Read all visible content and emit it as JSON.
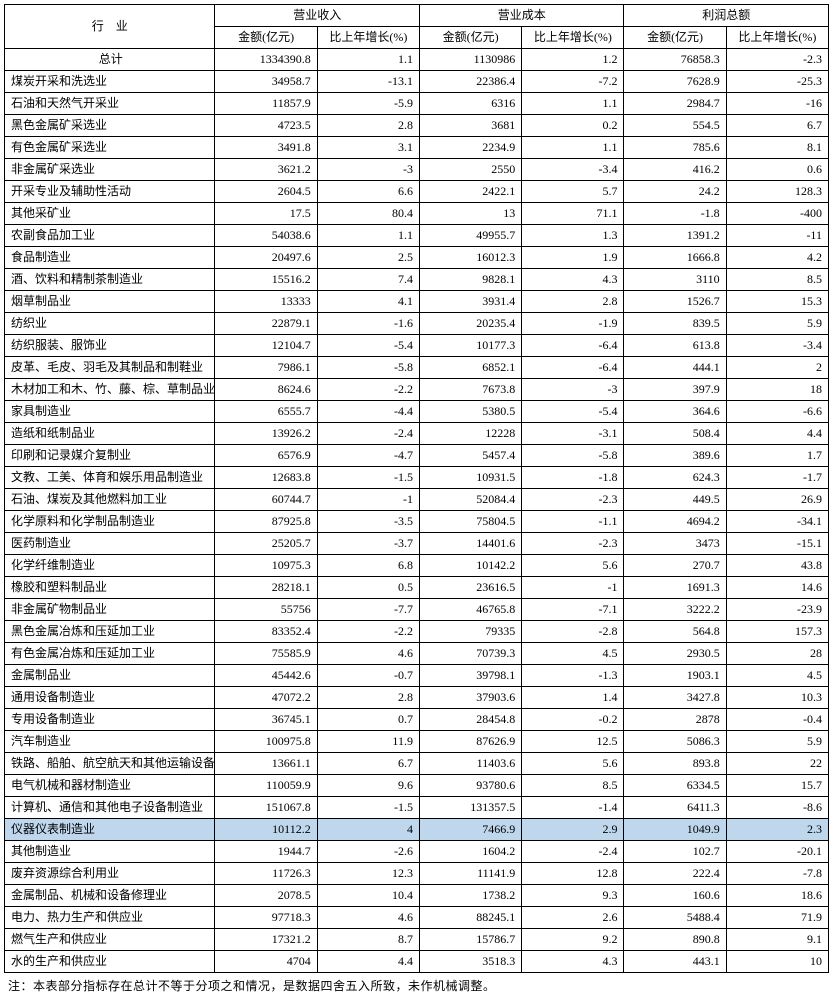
{
  "header": {
    "industry": "行　业",
    "revenue": "营业收入",
    "cost": "营业成本",
    "profit": "利润总额",
    "amount": "金额(亿元)",
    "growth": "比上年增长(%)"
  },
  "highlight_row_index": 35,
  "rows": [
    {
      "name": "总计",
      "rev_amt": "1334390.8",
      "rev_g": "1.1",
      "cost_amt": "1130986",
      "cost_g": "1.2",
      "prof_amt": "76858.3",
      "prof_g": "-2.3",
      "total": true
    },
    {
      "name": "煤炭开采和洗选业",
      "rev_amt": "34958.7",
      "rev_g": "-13.1",
      "cost_amt": "22386.4",
      "cost_g": "-7.2",
      "prof_amt": "7628.9",
      "prof_g": "-25.3"
    },
    {
      "name": "石油和天然气开采业",
      "rev_amt": "11857.9",
      "rev_g": "-5.9",
      "cost_amt": "6316",
      "cost_g": "1.1",
      "prof_amt": "2984.7",
      "prof_g": "-16"
    },
    {
      "name": "黑色金属矿采选业",
      "rev_amt": "4723.5",
      "rev_g": "2.8",
      "cost_amt": "3681",
      "cost_g": "0.2",
      "prof_amt": "554.5",
      "prof_g": "6.7"
    },
    {
      "name": "有色金属矿采选业",
      "rev_amt": "3491.8",
      "rev_g": "3.1",
      "cost_amt": "2234.9",
      "cost_g": "1.1",
      "prof_amt": "785.6",
      "prof_g": "8.1"
    },
    {
      "name": "非金属矿采选业",
      "rev_amt": "3621.2",
      "rev_g": "-3",
      "cost_amt": "2550",
      "cost_g": "-3.4",
      "prof_amt": "416.2",
      "prof_g": "0.6"
    },
    {
      "name": "开采专业及辅助性活动",
      "rev_amt": "2604.5",
      "rev_g": "6.6",
      "cost_amt": "2422.1",
      "cost_g": "5.7",
      "prof_amt": "24.2",
      "prof_g": "128.3"
    },
    {
      "name": "其他采矿业",
      "rev_amt": "17.5",
      "rev_g": "80.4",
      "cost_amt": "13",
      "cost_g": "71.1",
      "prof_amt": "-1.8",
      "prof_g": "-400"
    },
    {
      "name": "农副食品加工业",
      "rev_amt": "54038.6",
      "rev_g": "1.1",
      "cost_amt": "49955.7",
      "cost_g": "1.3",
      "prof_amt": "1391.2",
      "prof_g": "-11"
    },
    {
      "name": "食品制造业",
      "rev_amt": "20497.6",
      "rev_g": "2.5",
      "cost_amt": "16012.3",
      "cost_g": "1.9",
      "prof_amt": "1666.8",
      "prof_g": "4.2"
    },
    {
      "name": "酒、饮料和精制茶制造业",
      "rev_amt": "15516.2",
      "rev_g": "7.4",
      "cost_amt": "9828.1",
      "cost_g": "4.3",
      "prof_amt": "3110",
      "prof_g": "8.5"
    },
    {
      "name": "烟草制品业",
      "rev_amt": "13333",
      "rev_g": "4.1",
      "cost_amt": "3931.4",
      "cost_g": "2.8",
      "prof_amt": "1526.7",
      "prof_g": "15.3"
    },
    {
      "name": "纺织业",
      "rev_amt": "22879.1",
      "rev_g": "-1.6",
      "cost_amt": "20235.4",
      "cost_g": "-1.9",
      "prof_amt": "839.5",
      "prof_g": "5.9"
    },
    {
      "name": "纺织服装、服饰业",
      "rev_amt": "12104.7",
      "rev_g": "-5.4",
      "cost_amt": "10177.3",
      "cost_g": "-6.4",
      "prof_amt": "613.8",
      "prof_g": "-3.4"
    },
    {
      "name": "皮革、毛皮、羽毛及其制品和制鞋业",
      "rev_amt": "7986.1",
      "rev_g": "-5.8",
      "cost_amt": "6852.1",
      "cost_g": "-6.4",
      "prof_amt": "444.1",
      "prof_g": "2"
    },
    {
      "name": "木材加工和木、竹、藤、棕、草制品业",
      "rev_amt": "8624.6",
      "rev_g": "-2.2",
      "cost_amt": "7673.8",
      "cost_g": "-3",
      "prof_amt": "397.9",
      "prof_g": "18"
    },
    {
      "name": "家具制造业",
      "rev_amt": "6555.7",
      "rev_g": "-4.4",
      "cost_amt": "5380.5",
      "cost_g": "-5.4",
      "prof_amt": "364.6",
      "prof_g": "-6.6"
    },
    {
      "name": "造纸和纸制品业",
      "rev_amt": "13926.2",
      "rev_g": "-2.4",
      "cost_amt": "12228",
      "cost_g": "-3.1",
      "prof_amt": "508.4",
      "prof_g": "4.4"
    },
    {
      "name": "印刷和记录媒介复制业",
      "rev_amt": "6576.9",
      "rev_g": "-4.7",
      "cost_amt": "5457.4",
      "cost_g": "-5.8",
      "prof_amt": "389.6",
      "prof_g": "1.7"
    },
    {
      "name": "文教、工美、体育和娱乐用品制造业",
      "rev_amt": "12683.8",
      "rev_g": "-1.5",
      "cost_amt": "10931.5",
      "cost_g": "-1.8",
      "prof_amt": "624.3",
      "prof_g": "-1.7"
    },
    {
      "name": "石油、煤炭及其他燃料加工业",
      "rev_amt": "60744.7",
      "rev_g": "-1",
      "cost_amt": "52084.4",
      "cost_g": "-2.3",
      "prof_amt": "449.5",
      "prof_g": "26.9"
    },
    {
      "name": "化学原料和化学制品制造业",
      "rev_amt": "87925.8",
      "rev_g": "-3.5",
      "cost_amt": "75804.5",
      "cost_g": "-1.1",
      "prof_amt": "4694.2",
      "prof_g": "-34.1"
    },
    {
      "name": "医药制造业",
      "rev_amt": "25205.7",
      "rev_g": "-3.7",
      "cost_amt": "14401.6",
      "cost_g": "-2.3",
      "prof_amt": "3473",
      "prof_g": "-15.1"
    },
    {
      "name": "化学纤维制造业",
      "rev_amt": "10975.3",
      "rev_g": "6.8",
      "cost_amt": "10142.2",
      "cost_g": "5.6",
      "prof_amt": "270.7",
      "prof_g": "43.8"
    },
    {
      "name": "橡胶和塑料制品业",
      "rev_amt": "28218.1",
      "rev_g": "0.5",
      "cost_amt": "23616.5",
      "cost_g": "-1",
      "prof_amt": "1691.3",
      "prof_g": "14.6"
    },
    {
      "name": "非金属矿物制品业",
      "rev_amt": "55756",
      "rev_g": "-7.7",
      "cost_amt": "46765.8",
      "cost_g": "-7.1",
      "prof_amt": "3222.2",
      "prof_g": "-23.9"
    },
    {
      "name": "黑色金属冶炼和压延加工业",
      "rev_amt": "83352.4",
      "rev_g": "-2.2",
      "cost_amt": "79335",
      "cost_g": "-2.8",
      "prof_amt": "564.8",
      "prof_g": "157.3"
    },
    {
      "name": "有色金属冶炼和压延加工业",
      "rev_amt": "75585.9",
      "rev_g": "4.6",
      "cost_amt": "70739.3",
      "cost_g": "4.5",
      "prof_amt": "2930.5",
      "prof_g": "28"
    },
    {
      "name": "金属制品业",
      "rev_amt": "45442.6",
      "rev_g": "-0.7",
      "cost_amt": "39798.1",
      "cost_g": "-1.3",
      "prof_amt": "1903.1",
      "prof_g": "4.5"
    },
    {
      "name": "通用设备制造业",
      "rev_amt": "47072.2",
      "rev_g": "2.8",
      "cost_amt": "37903.6",
      "cost_g": "1.4",
      "prof_amt": "3427.8",
      "prof_g": "10.3"
    },
    {
      "name": "专用设备制造业",
      "rev_amt": "36745.1",
      "rev_g": "0.7",
      "cost_amt": "28454.8",
      "cost_g": "-0.2",
      "prof_amt": "2878",
      "prof_g": "-0.4"
    },
    {
      "name": "汽车制造业",
      "rev_amt": "100975.8",
      "rev_g": "11.9",
      "cost_amt": "87626.9",
      "cost_g": "12.5",
      "prof_amt": "5086.3",
      "prof_g": "5.9"
    },
    {
      "name": "铁路、船舶、航空航天和其他运输设备制造业",
      "rev_amt": "13661.1",
      "rev_g": "6.7",
      "cost_amt": "11403.6",
      "cost_g": "5.6",
      "prof_amt": "893.8",
      "prof_g": "22"
    },
    {
      "name": "电气机械和器材制造业",
      "rev_amt": "110059.9",
      "rev_g": "9.6",
      "cost_amt": "93780.6",
      "cost_g": "8.5",
      "prof_amt": "6334.5",
      "prof_g": "15.7"
    },
    {
      "name": "计算机、通信和其他电子设备制造业",
      "rev_amt": "151067.8",
      "rev_g": "-1.5",
      "cost_amt": "131357.5",
      "cost_g": "-1.4",
      "prof_amt": "6411.3",
      "prof_g": "-8.6"
    },
    {
      "name": "仪器仪表制造业",
      "rev_amt": "10112.2",
      "rev_g": "4",
      "cost_amt": "7466.9",
      "cost_g": "2.9",
      "prof_amt": "1049.9",
      "prof_g": "2.3"
    },
    {
      "name": "其他制造业",
      "rev_amt": "1944.7",
      "rev_g": "-2.6",
      "cost_amt": "1604.2",
      "cost_g": "-2.4",
      "prof_amt": "102.7",
      "prof_g": "-20.1"
    },
    {
      "name": "废弃资源综合利用业",
      "rev_amt": "11726.3",
      "rev_g": "12.3",
      "cost_amt": "11141.9",
      "cost_g": "12.8",
      "prof_amt": "222.4",
      "prof_g": "-7.8"
    },
    {
      "name": "金属制品、机械和设备修理业",
      "rev_amt": "2078.5",
      "rev_g": "10.4",
      "cost_amt": "1738.2",
      "cost_g": "9.3",
      "prof_amt": "160.6",
      "prof_g": "18.6"
    },
    {
      "name": "电力、热力生产和供应业",
      "rev_amt": "97718.3",
      "rev_g": "4.6",
      "cost_amt": "88245.1",
      "cost_g": "2.6",
      "prof_amt": "5488.4",
      "prof_g": "71.9"
    },
    {
      "name": "燃气生产和供应业",
      "rev_amt": "17321.2",
      "rev_g": "8.7",
      "cost_amt": "15786.7",
      "cost_g": "9.2",
      "prof_amt": "890.8",
      "prof_g": "9.1"
    },
    {
      "name": "水的生产和供应业",
      "rev_amt": "4704",
      "rev_g": "4.4",
      "cost_amt": "3518.3",
      "cost_g": "4.3",
      "prof_amt": "443.1",
      "prof_g": "10"
    }
  ],
  "footnote": "注：本表部分指标存在总计不等于分项之和情况，是数据四舍五入所致，未作机械调整。"
}
